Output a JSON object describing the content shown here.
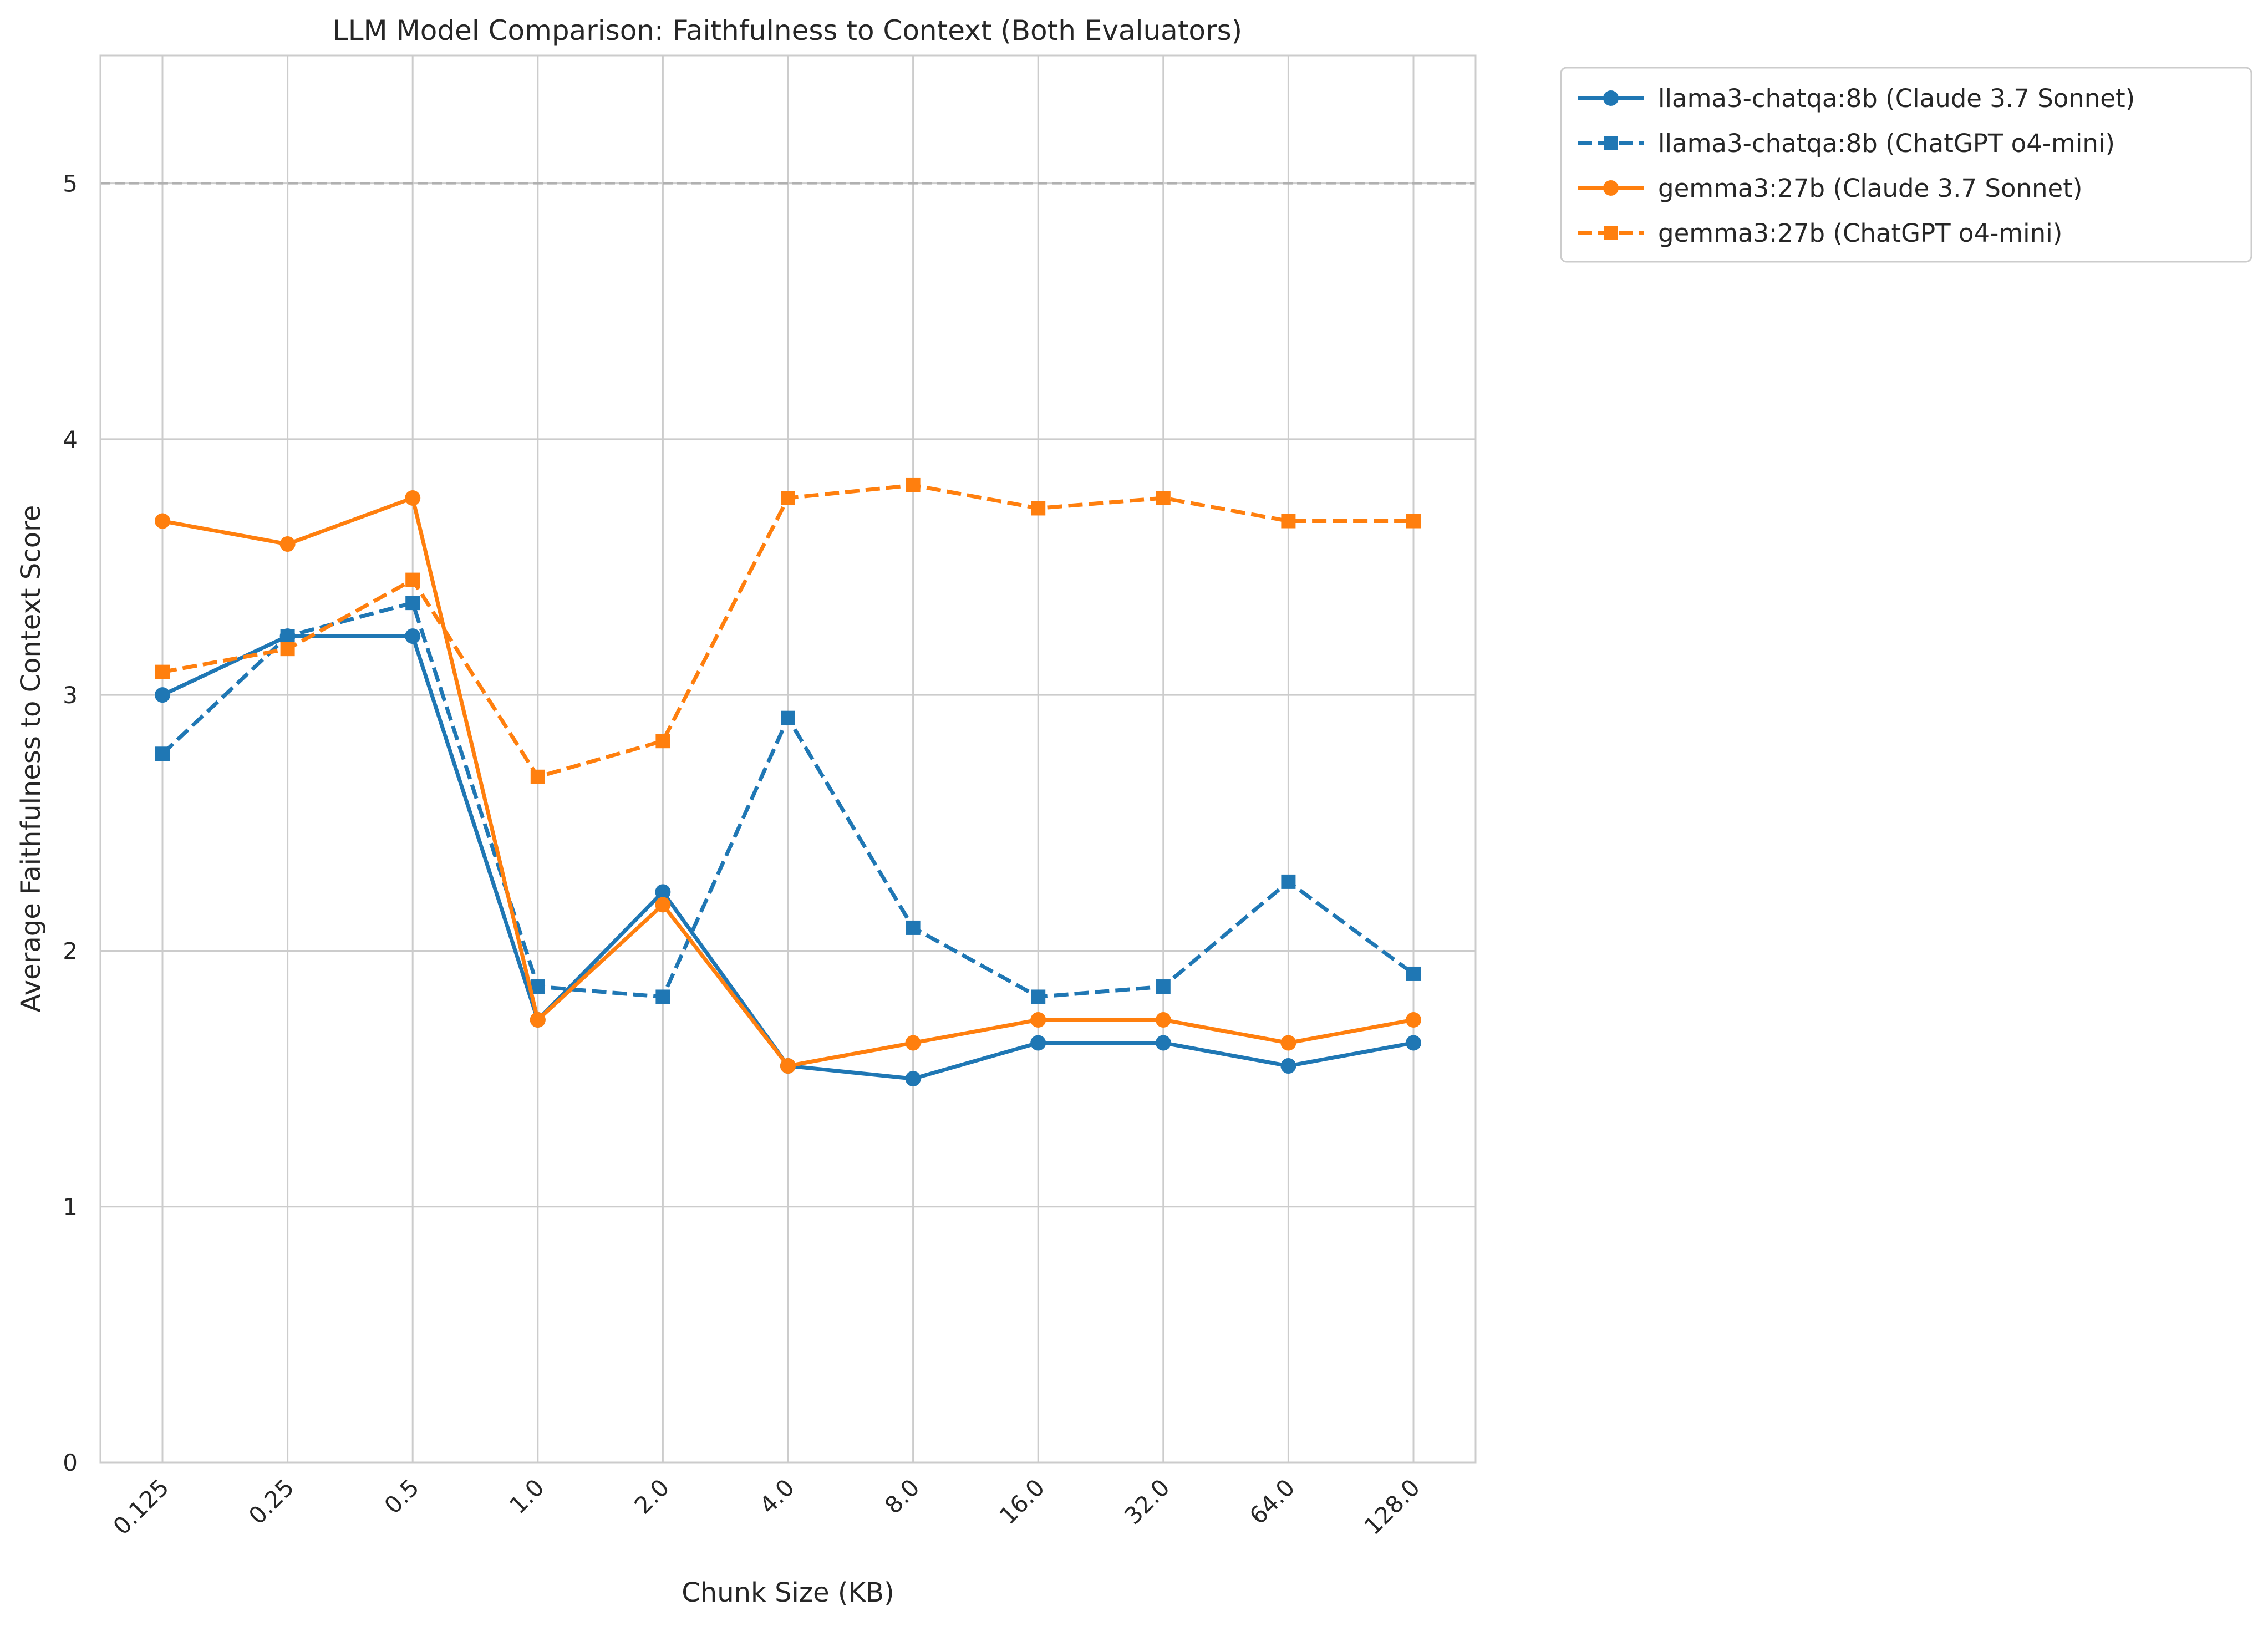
{
  "chart_data": {
    "type": "line",
    "title": "LLM Model Comparison: Faithfulness to Context (Both Evaluators)",
    "xlabel": "Chunk Size (KB)",
    "ylabel": "Average Faithfulness to Context Score",
    "categories": [
      "0.125",
      "0.25",
      "0.5",
      "1.0",
      "2.0",
      "4.0",
      "8.0",
      "16.0",
      "32.0",
      "64.0",
      "128.0"
    ],
    "ylim": [
      0,
      5.5
    ],
    "yticks": [
      "0",
      "1",
      "2",
      "3",
      "4",
      "5"
    ],
    "reference_line": {
      "y": 5,
      "style": "dashed",
      "color": "#b0b0b0"
    },
    "grid": true,
    "legend_position": "outside-top-right",
    "series": [
      {
        "name": "llama3-chatqa:8b (Claude 3.7 Sonnet)",
        "color": "#1f77b4",
        "line_style": "solid",
        "marker": "circle",
        "values": [
          3.0,
          3.23,
          3.23,
          1.73,
          2.23,
          1.55,
          1.5,
          1.64,
          1.64,
          1.55,
          1.64
        ]
      },
      {
        "name": "llama3-chatqa:8b (ChatGPT o4-mini)",
        "color": "#1f77b4",
        "line_style": "dashed",
        "marker": "square",
        "values": [
          2.77,
          3.23,
          3.36,
          1.86,
          1.82,
          2.91,
          2.09,
          1.82,
          1.86,
          2.27,
          1.91
        ]
      },
      {
        "name": "gemma3:27b (Claude 3.7 Sonnet)",
        "color": "#ff7f0e",
        "line_style": "solid",
        "marker": "circle",
        "values": [
          3.68,
          3.59,
          3.77,
          1.73,
          2.18,
          1.55,
          1.64,
          1.73,
          1.73,
          1.64,
          1.73
        ]
      },
      {
        "name": "gemma3:27b (ChatGPT o4-mini)",
        "color": "#ff7f0e",
        "line_style": "dashed",
        "marker": "square",
        "values": [
          3.09,
          3.18,
          3.45,
          2.68,
          2.82,
          3.77,
          3.82,
          3.73,
          3.77,
          3.68,
          3.68
        ]
      }
    ]
  }
}
